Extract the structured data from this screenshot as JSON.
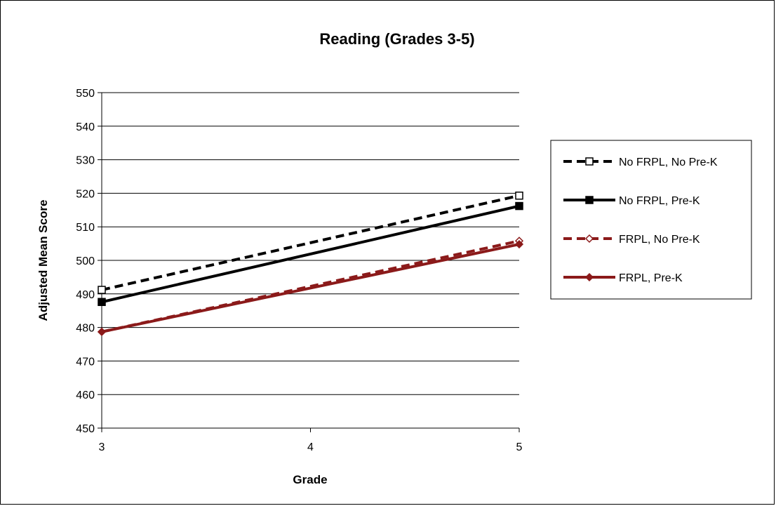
{
  "chart_data": {
    "type": "line",
    "title": "Reading (Grades 3-5)",
    "xlabel": "Grade",
    "ylabel": "Adjusted Mean Score",
    "x": [
      3,
      5
    ],
    "x_ticks": [
      "3",
      "4",
      "5"
    ],
    "xlim": [
      3,
      5
    ],
    "ylim": [
      450,
      550
    ],
    "y_ticks": [
      "450",
      "460",
      "470",
      "480",
      "490",
      "500",
      "510",
      "520",
      "530",
      "540",
      "550"
    ],
    "grid": "horizontal",
    "legend": "right",
    "series": [
      {
        "name": "No FRPL, No Pre-K",
        "values": [
          491.2,
          519.3
        ],
        "color": "#000000",
        "dash": "dashed",
        "marker": "square-open"
      },
      {
        "name": "No FRPL, Pre-K",
        "values": [
          487.6,
          516.2
        ],
        "color": "#000000",
        "dash": "solid",
        "marker": "square-filled"
      },
      {
        "name": "FRPL, No Pre-K",
        "values": [
          478.7,
          505.8
        ],
        "color": "#8b1a1a",
        "dash": "dashed",
        "marker": "diamond-open"
      },
      {
        "name": "FRPL, Pre-K",
        "values": [
          478.7,
          504.8
        ],
        "color": "#8b1a1a",
        "dash": "solid",
        "marker": "diamond-filled"
      }
    ]
  }
}
